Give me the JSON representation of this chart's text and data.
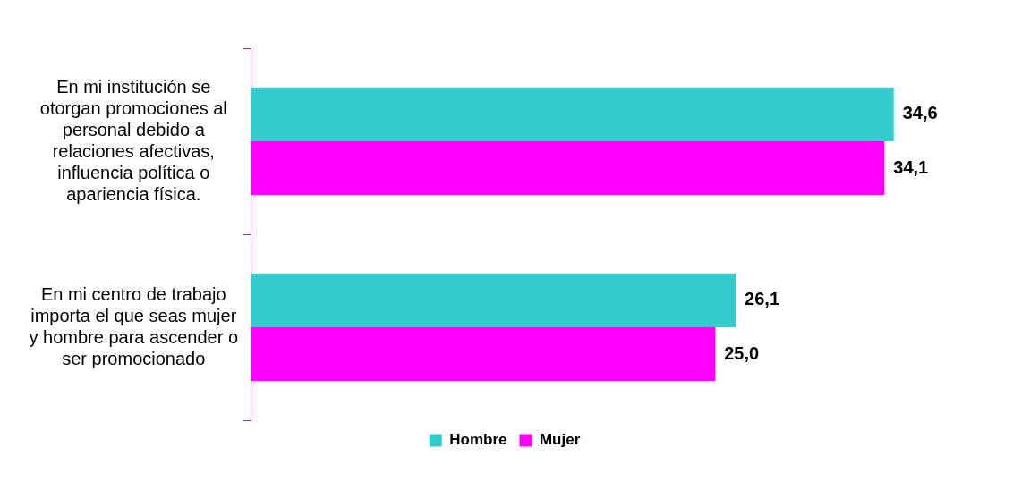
{
  "chart_data": {
    "type": "bar",
    "orientation": "horizontal",
    "categories": [
      "En mi institución se otorgan promociones al personal debido a relaciones afectivas, influencia política o apariencia física.",
      "En mi centro de trabajo importa el que seas mujer y hombre para ascender o ser promocionado"
    ],
    "series": [
      {
        "name": "Hombre",
        "color": "#33cccc",
        "values": [
          34.6,
          26.1
        ],
        "value_labels": [
          "34,6",
          "26,1"
        ]
      },
      {
        "name": "Mujer",
        "color": "#ff00ff",
        "values": [
          34.1,
          25.0
        ],
        "value_labels": [
          "34,1",
          "25,0"
        ]
      }
    ],
    "legend": "bottom"
  }
}
